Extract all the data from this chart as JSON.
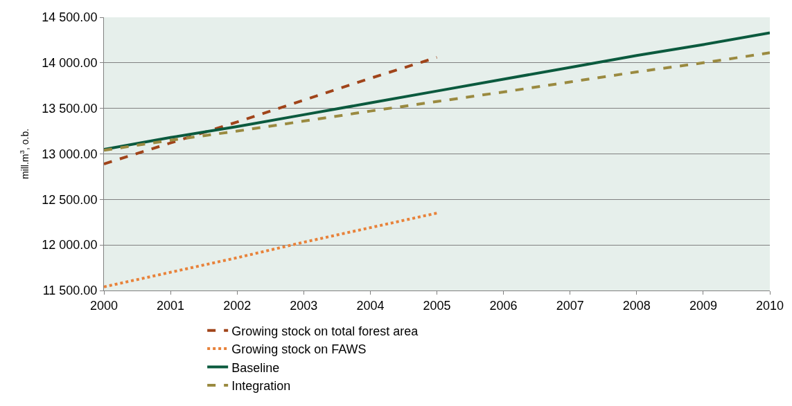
{
  "chart_data": {
    "type": "line",
    "ylabel": "mill.m$^{3}$, o.b.",
    "x": [
      2000,
      2001,
      2002,
      2003,
      2004,
      2005,
      2006,
      2007,
      2008,
      2009,
      2010
    ],
    "series": [
      {
        "name": "Growing stock on total forest area",
        "color": "#a0441a",
        "line_style": "dashed",
        "x": [
          2000,
          2001,
          2002,
          2003,
          2004,
          2005
        ],
        "values": [
          12890,
          13120,
          13350,
          13590,
          13830,
          14060
        ]
      },
      {
        "name": "Growing stock on FAWS",
        "color": "#e8823a",
        "line_style": "dotted",
        "x": [
          2000,
          2001,
          2002,
          2003,
          2004,
          2005
        ],
        "values": [
          11540,
          11700,
          11860,
          12030,
          12190,
          12350
        ]
      },
      {
        "name": "Baseline",
        "color": "#0b5a3e",
        "line_style": "solid",
        "values": [
          13050,
          13180,
          13300,
          13430,
          13560,
          13690,
          13820,
          13950,
          14080,
          14200,
          14330
        ]
      },
      {
        "name": "Integration",
        "color": "#9a8a40",
        "line_style": "dashed",
        "values": [
          13040,
          13150,
          13250,
          13360,
          13470,
          13575,
          13680,
          13790,
          13900,
          14000,
          14110
        ]
      }
    ],
    "xlim": [
      2000,
      2010
    ],
    "xticks": [
      2000,
      2001,
      2002,
      2003,
      2004,
      2005,
      2006,
      2007,
      2008,
      2009,
      2010
    ],
    "ylim": [
      11500,
      14500
    ],
    "yticks": [
      {
        "value": 11500,
        "label": "11 500.00"
      },
      {
        "value": 12000,
        "label": "12 000.00"
      },
      {
        "value": 12500,
        "label": "12 500.00"
      },
      {
        "value": 13000,
        "label": "13 000.00"
      },
      {
        "value": 13500,
        "label": "13 500.00"
      },
      {
        "value": 14000,
        "label": "14 000.00"
      },
      {
        "value": 14500,
        "label": "14 500.00"
      }
    ],
    "grid": "y",
    "legend": "bottom",
    "marker": "none"
  }
}
